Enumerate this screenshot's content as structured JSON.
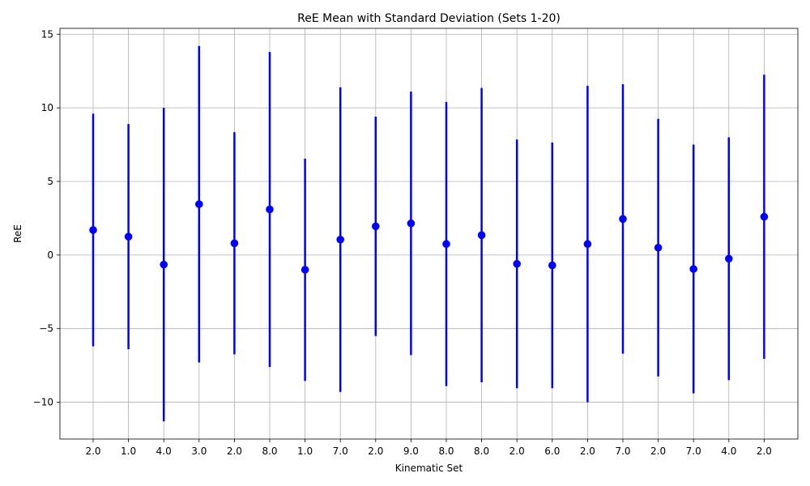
{
  "chart_data": {
    "type": "scatter",
    "title": "ReE Mean with Standard Deviation (Sets 1-20)",
    "xlabel": "Kinematic Set",
    "ylabel": "ReE",
    "categories": [
      "2.0",
      "1.0",
      "4.0",
      "3.0",
      "2.0",
      "8.0",
      "1.0",
      "7.0",
      "2.0",
      "9.0",
      "8.0",
      "8.0",
      "2.0",
      "6.0",
      "2.0",
      "7.0",
      "2.0",
      "7.0",
      "4.0",
      "2.0"
    ],
    "ylim": [
      -12.5,
      15.4
    ],
    "yticks": [
      -10,
      -5,
      0,
      5,
      10,
      15
    ],
    "ytick_labels": [
      "−10",
      "−5",
      "0",
      "5",
      "10",
      "15"
    ],
    "grid": true,
    "color": "#0000ff",
    "series": [
      {
        "mean": [
          1.7,
          1.25,
          -0.65,
          3.45,
          0.8,
          3.1,
          -1.0,
          1.05,
          1.95,
          2.15,
          0.75,
          1.35,
          -0.6,
          -0.7,
          0.75,
          2.45,
          0.5,
          -0.95,
          -0.25,
          2.6
        ],
        "std": [
          7.9,
          7.65,
          10.65,
          10.75,
          7.55,
          10.7,
          7.55,
          10.35,
          7.45,
          8.95,
          9.65,
          10.0,
          8.45,
          8.35,
          10.75,
          9.15,
          8.75,
          8.45,
          8.25,
          9.65
        ]
      }
    ]
  }
}
